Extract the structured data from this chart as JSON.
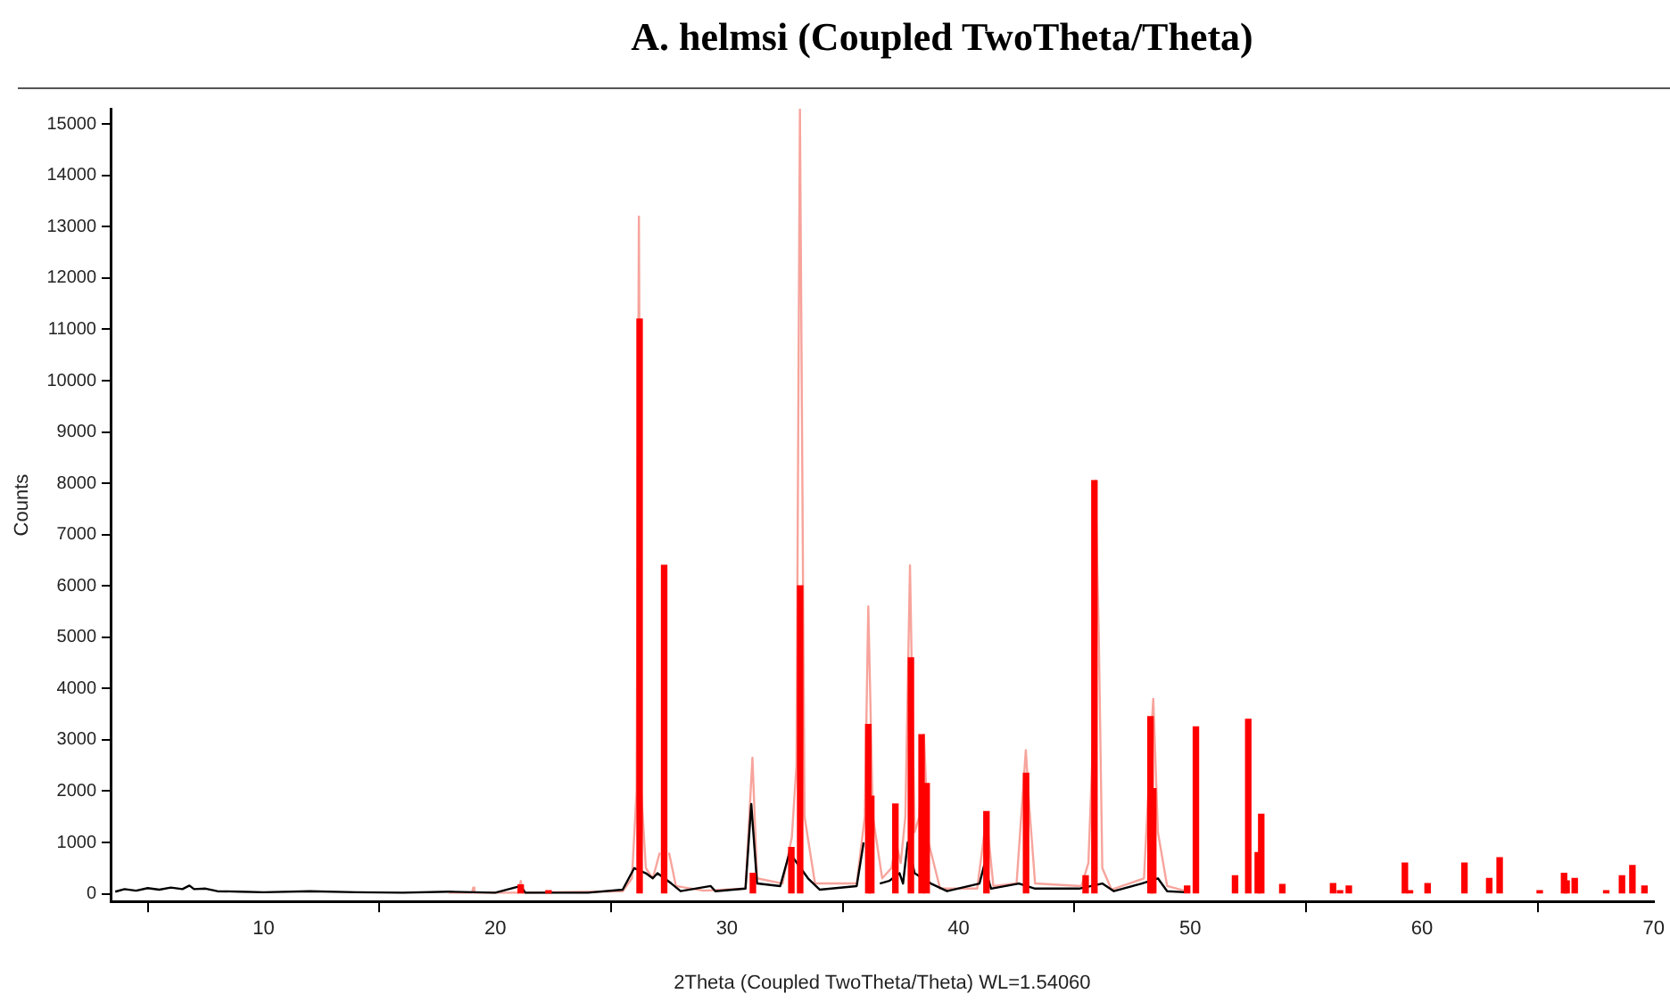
{
  "chart_data": {
    "type": "line",
    "title": "A. helmsi (Coupled TwoTheta/Theta)",
    "xlabel": "2Theta (Coupled TwoTheta/Theta) WL=1.54060",
    "ylabel": "Counts",
    "xlim": [
      3.4,
      70
    ],
    "xticks": [
      10,
      20,
      30,
      40,
      50,
      60,
      70
    ],
    "ylim": [
      -150,
      15300
    ],
    "yticks": [
      0,
      1000,
      2000,
      3000,
      4000,
      5000,
      6000,
      7000,
      8000,
      9000,
      10000,
      11000,
      12000,
      13000,
      14000,
      15000
    ],
    "grid": false,
    "legend": false,
    "marker": "none",
    "line_style": "solid",
    "series": [
      {
        "color": "#f7a49c",
        "x": [
          18,
          19.0,
          19.05,
          19.1,
          21.0,
          21.1,
          21.2,
          25.5,
          25.9,
          26.1,
          26.2,
          26.3,
          26.5,
          26.8,
          27.1,
          27.3,
          27.5,
          27.8,
          29.0,
          30.8,
          31.1,
          31.3,
          32.4,
          32.8,
          33.0,
          33.15,
          33.35,
          33.8,
          35.6,
          35.95,
          36.1,
          36.3,
          36.7,
          37.1,
          37.3,
          37.5,
          37.7,
          37.9,
          38.1,
          38.3,
          38.5,
          38.7,
          39.2,
          40.8,
          41.2,
          41.5,
          42.5,
          42.9,
          43.05,
          43.3,
          45.3,
          45.6,
          45.8,
          45.9,
          46.05,
          46.2,
          46.6,
          48.0,
          48.3,
          48.4,
          48.6,
          49.0,
          50.0
        ],
        "values": [
          20,
          20,
          120,
          20,
          20,
          250,
          20,
          50,
          300,
          2000,
          13200,
          2000,
          500,
          300,
          800,
          null,
          800,
          150,
          60,
          100,
          2650,
          300,
          200,
          1100,
          2500,
          15300,
          1500,
          200,
          200,
          1500,
          5600,
          1500,
          300,
          500,
          1000,
          600,
          1500,
          6400,
          1200,
          1500,
          3100,
          1000,
          100,
          100,
          1500,
          150,
          200,
          2800,
          1700,
          200,
          150,
          600,
          3000,
          8050,
          5000,
          500,
          80,
          300,
          3000,
          3800,
          1200,
          150,
          30
        ]
      },
      {
        "color": "#000000",
        "x": [
          3.6,
          4,
          4.5,
          5,
          5.5,
          6,
          6.5,
          6.8,
          7,
          7.5,
          8,
          9,
          10,
          12,
          14,
          16,
          18,
          20,
          21.1,
          21.3,
          24,
          25.5,
          26.0,
          26.5,
          26.8,
          27.0,
          27.6,
          28,
          29.3,
          29.5,
          30.8,
          31.05,
          31.3,
          32.3,
          32.7,
          33.5,
          34,
          35.6,
          35.9,
          36.2,
          36.6,
          37.0,
          37.45,
          37.6,
          37.8,
          38.1,
          38.8,
          39.5,
          40.9,
          41.1,
          41.4,
          42.6,
          43.3,
          45.2,
          46.2,
          46.7,
          47.9,
          48.6,
          49,
          49.8
        ],
        "values": [
          40,
          90,
          60,
          110,
          80,
          120,
          90,
          160,
          90,
          100,
          50,
          40,
          30,
          50,
          30,
          20,
          40,
          20,
          150,
          20,
          20,
          80,
          500,
          400,
          300,
          400,
          200,
          50,
          150,
          50,
          100,
          1750,
          200,
          150,
          800,
          300,
          80,
          150,
          1000,
          null,
          200,
          250,
          400,
          200,
          1000,
          400,
          200,
          50,
          200,
          550,
          100,
          200,
          100,
          100,
          200,
          50,
          200,
          300,
          50,
          30
        ]
      },
      {
        "type": "bar",
        "color": "#ff0000",
        "x": [
          21.1,
          22.3,
          26.23,
          27.29,
          31.12,
          32.78,
          33.16,
          36.1,
          36.23,
          37.27,
          37.94,
          38.4,
          38.62,
          41.2,
          42.91,
          45.48,
          45.86,
          48.28,
          48.4,
          49.86,
          50.24,
          51.93,
          52.5,
          52.91,
          53.06,
          53.97,
          56.16,
          56.46,
          56.84,
          59.26,
          59.48,
          60.24,
          61.83,
          62.9,
          63.35,
          65.08,
          66.13,
          66.24,
          66.59,
          67.95,
          68.63,
          69.08,
          69.6
        ],
        "values": [
          170,
          60,
          11200,
          6400,
          400,
          900,
          6000,
          3300,
          1900,
          1750,
          4600,
          3100,
          2150,
          1600,
          2350,
          350,
          8050,
          3450,
          2050,
          150,
          3250,
          350,
          3400,
          800,
          1550,
          180,
          200,
          60,
          150,
          600,
          60,
          200,
          600,
          300,
          700,
          60,
          400,
          250,
          300,
          60,
          350,
          550,
          150
        ]
      }
    ]
  }
}
